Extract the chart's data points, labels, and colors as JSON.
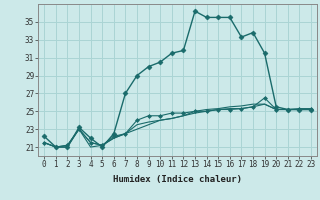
{
  "title": "",
  "xlabel": "Humidex (Indice chaleur)",
  "background_color": "#cce9e9",
  "grid_color": "#aad4d4",
  "line_color": "#1a6b6b",
  "xlim": [
    -0.5,
    23.5
  ],
  "ylim": [
    20.0,
    37.0
  ],
  "yticks": [
    21,
    23,
    25,
    27,
    29,
    31,
    33,
    35
  ],
  "xticks": [
    0,
    1,
    2,
    3,
    4,
    5,
    6,
    7,
    8,
    9,
    10,
    11,
    12,
    13,
    14,
    15,
    16,
    17,
    18,
    19,
    20,
    21,
    22,
    23
  ],
  "series": [
    {
      "x": [
        0,
        1,
        2,
        3,
        4,
        5,
        6,
        7,
        8,
        9,
        10,
        11,
        12,
        13,
        14,
        15,
        16,
        17,
        18,
        19,
        20,
        21,
        22,
        23
      ],
      "y": [
        22.2,
        21.0,
        21.0,
        23.2,
        22.0,
        21.0,
        22.5,
        27.0,
        29.0,
        30.0,
        30.5,
        31.5,
        31.8,
        36.2,
        35.5,
        35.5,
        35.5,
        33.3,
        33.8,
        31.5,
        25.5,
        25.2,
        25.2,
        25.2
      ],
      "marker": "D",
      "markersize": 2.5,
      "linewidth": 1.0
    },
    {
      "x": [
        0,
        1,
        2,
        3,
        4,
        5,
        6,
        7,
        8,
        9,
        10,
        11,
        12,
        13,
        14,
        15,
        16,
        17,
        18,
        19,
        20,
        21,
        22,
        23
      ],
      "y": [
        21.5,
        21.0,
        21.2,
        23.0,
        21.5,
        21.2,
        22.2,
        22.5,
        24.0,
        24.5,
        24.5,
        24.8,
        24.8,
        25.0,
        25.0,
        25.2,
        25.2,
        25.3,
        25.5,
        26.5,
        25.2,
        25.2,
        25.3,
        25.3
      ],
      "marker": "D",
      "markersize": 2.0,
      "linewidth": 0.8
    },
    {
      "x": [
        0,
        1,
        2,
        3,
        4,
        5,
        6,
        7,
        8,
        9,
        10,
        11,
        12,
        13,
        14,
        15,
        16,
        17,
        18,
        19,
        20,
        21,
        22,
        23
      ],
      "y": [
        21.5,
        21.0,
        21.2,
        23.0,
        21.5,
        21.2,
        22.0,
        22.5,
        23.5,
        23.8,
        24.0,
        24.2,
        24.5,
        24.8,
        25.0,
        25.2,
        25.3,
        25.3,
        25.5,
        25.8,
        25.2,
        25.2,
        25.2,
        25.2
      ],
      "marker": null,
      "markersize": 0,
      "linewidth": 0.8
    },
    {
      "x": [
        0,
        1,
        2,
        3,
        4,
        5,
        6,
        7,
        8,
        9,
        10,
        11,
        12,
        13,
        14,
        15,
        16,
        17,
        18,
        19,
        20,
        21,
        22,
        23
      ],
      "y": [
        21.5,
        21.0,
        21.0,
        23.0,
        21.0,
        21.2,
        22.0,
        22.5,
        23.0,
        23.5,
        24.0,
        24.2,
        24.5,
        25.0,
        25.2,
        25.3,
        25.5,
        25.6,
        25.8,
        25.8,
        25.2,
        25.2,
        25.2,
        25.2
      ],
      "marker": null,
      "markersize": 0,
      "linewidth": 0.8
    }
  ],
  "title_fontsize": 7,
  "label_fontsize": 6.5,
  "tick_fontsize": 5.5
}
